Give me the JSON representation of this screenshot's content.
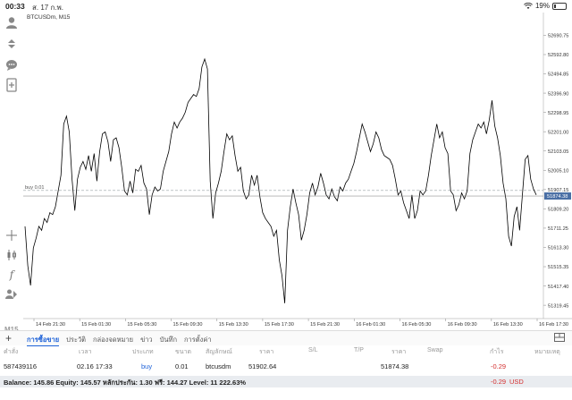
{
  "status_bar": {
    "time": "00:33",
    "date": "ส. 17 ก.พ.",
    "battery": "19%",
    "battery_level": 0.19
  },
  "chart": {
    "symbol_label": "BTCUSDm, M15",
    "timeframe": "M15",
    "order_line_label": "buy 0.01",
    "order_price": 51902.64,
    "current_price_label": "51874.38",
    "line_color": "#000000",
    "order_line_color": "#9aa0a6",
    "price_tag_color": "#4a6fa5"
  },
  "chart_data": {
    "type": "line",
    "x_labels": [
      "14 Feb 21:30",
      "15 Feb 01:30",
      "15 Feb 05:30",
      "15 Feb 09:30",
      "15 Feb 13:30",
      "15 Feb 17:30",
      "15 Feb 21:30",
      "16 Feb 01:30",
      "16 Feb 05:30",
      "16 Feb 09:30",
      "16 Feb 13:30",
      "16 Feb 17:30"
    ],
    "y_ticks": [
      "52690.75",
      "52592.80",
      "52494.85",
      "52396.90",
      "52298.95",
      "52201.00",
      "52103.05",
      "52005.10",
      "51907.15",
      "51809.20",
      "51711.25",
      "51613.30",
      "51515.35",
      "51417.40",
      "51319.45"
    ],
    "ylim": [
      51270,
      52770
    ],
    "values": [
      51720,
      51520,
      51420,
      51610,
      51660,
      51720,
      51700,
      51760,
      51740,
      51790,
      51780,
      51820,
      51900,
      51980,
      52240,
      52280,
      52200,
      51960,
      51800,
      51960,
      52020,
      52050,
      52010,
      52080,
      52000,
      52090,
      51950,
      52100,
      52190,
      52200,
      52150,
      52050,
      52160,
      52170,
      52120,
      52020,
      51900,
      51880,
      51950,
      51890,
      52010,
      52000,
      52030,
      51940,
      51910,
      51780,
      51880,
      51920,
      51900,
      51910,
      52000,
      52050,
      52100,
      52190,
      52250,
      52220,
      52250,
      52270,
      52300,
      52350,
      52370,
      52390,
      52380,
      52420,
      52530,
      52570,
      52520,
      51950,
      51760,
      51890,
      51940,
      52000,
      52100,
      52190,
      52160,
      52180,
      52080,
      52000,
      52020,
      51900,
      51860,
      51880,
      51980,
      51930,
      51980,
      51870,
      51790,
      51760,
      51740,
      51720,
      51670,
      51700,
      51550,
      51470,
      51330,
      51700,
      51820,
      51910,
      51840,
      51780,
      51650,
      51700,
      51780,
      51890,
      51940,
      51880,
      51920,
      51990,
      51940,
      51880,
      51860,
      51910,
      51870,
      51850,
      51920,
      51900,
      51940,
      51960,
      52000,
      52040,
      52100,
      52170,
      52240,
      52200,
      52150,
      52100,
      52140,
      52200,
      52170,
      52110,
      52080,
      52070,
      52060,
      52030,
      51960,
      51880,
      51900,
      51840,
      51800,
      51760,
      51880,
      51760,
      51800,
      51900,
      51880,
      51900,
      51980,
      52080,
      52160,
      52240,
      52170,
      52200,
      52120,
      52090,
      51900,
      51880,
      51800,
      51830,
      51890,
      51860,
      51900,
      52090,
      52160,
      52200,
      52240,
      52220,
      52250,
      52190,
      52260,
      52360,
      52230,
      52170,
      52080,
      51940,
      51860,
      51670,
      51620,
      51770,
      51820,
      51700,
      51880,
      52060,
      52080,
      51960,
      51910,
      51880
    ]
  },
  "tabs": [
    "การซื้อขาย",
    "ประวัติ",
    "กล่องจดหมาย",
    "ข่าว",
    "บันทึก",
    "การตั้งค่า"
  ],
  "table": {
    "headers": [
      "คำสั่ง",
      "เวลา",
      "ประเภท",
      "ขนาด",
      "สัญลักษณ์",
      "ราคา",
      "S/L",
      "T/P",
      "ราคา",
      "Swap",
      "กำไร",
      "หมายเหตุ"
    ],
    "rows": [
      {
        "order": "587439116",
        "time": "02.16 17:33",
        "type": "buy",
        "size": "0.01",
        "symbol": "btcusdm",
        "open_price": "51902.64",
        "sl": "",
        "tp": "",
        "price": "51874.38",
        "swap": "",
        "profit": "-0.29",
        "note": ""
      }
    ]
  },
  "balance": {
    "text": "Balance: 145.86 Equity: 145.57 หลักประกัน: 1.30 ฟรี: 144.27 Level: 11 222.63%",
    "profit": "-0.29",
    "currency": "USD"
  }
}
